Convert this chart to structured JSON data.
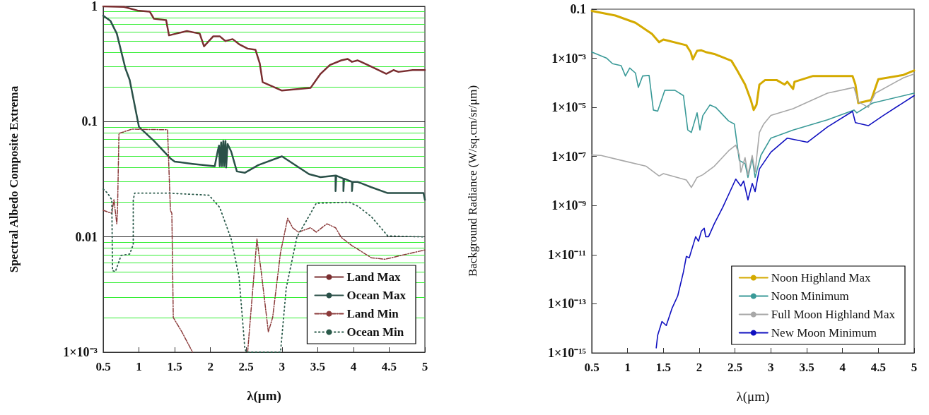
{
  "chart_data": [
    {
      "type": "line",
      "xlabel": "λ(μm)",
      "ylabel": "Spectral Albedo Composite Extrema",
      "log": "y",
      "grid": "y",
      "legend": "bottom right",
      "marker": "none",
      "xlim": [
        0.5,
        5
      ],
      "xticks": [
        0.5,
        1,
        1.5,
        2,
        2.5,
        3,
        3.5,
        4,
        4.5,
        5
      ],
      "ylim": [
        0.001,
        1
      ],
      "yticks": [
        {
          "value": 0.001,
          "label": "1×10⁻³"
        },
        {
          "value": 0.002,
          "label": null
        },
        {
          "value": 0.003,
          "label": null
        },
        {
          "value": 0.004,
          "label": null
        },
        {
          "value": 0.005,
          "label": null
        },
        {
          "value": 0.006,
          "label": null
        },
        {
          "value": 0.007,
          "label": null
        },
        {
          "value": 0.008,
          "label": null
        },
        {
          "value": 0.009,
          "label": null
        },
        0.01,
        {
          "value": 0.02,
          "label": null
        },
        {
          "value": 0.03,
          "label": null
        },
        {
          "value": 0.04,
          "label": null
        },
        {
          "value": 0.05,
          "label": null
        },
        {
          "value": 0.06,
          "label": null
        },
        {
          "value": 0.07,
          "label": null
        },
        {
          "value": 0.08,
          "label": null
        },
        {
          "value": 0.09,
          "label": null
        },
        0.1,
        {
          "value": 0.2,
          "label": null
        },
        {
          "value": 0.3,
          "label": null
        },
        {
          "value": 0.4,
          "label": null
        },
        {
          "value": 0.5,
          "label": null
        },
        {
          "value": 0.6,
          "label": null
        },
        {
          "value": 0.7,
          "label": null
        },
        {
          "value": 0.8,
          "label": null
        },
        {
          "value": 0.9,
          "label": null
        },
        1
      ],
      "series": [
        {
          "name": "Land Max",
          "color": "#7a2e30",
          "line_style": "solid",
          "x": [
            0.5,
            0.79,
            0.98,
            1.15,
            1.21,
            1.38,
            1.42,
            1.52,
            1.67,
            1.85,
            1.91,
            2.04,
            2.13,
            2.21,
            2.31,
            2.4,
            2.52,
            2.63,
            2.69,
            2.73,
            3.0,
            3.4,
            3.54,
            3.67,
            3.83,
            3.92,
            3.98,
            4.06,
            4.25,
            4.46,
            4.56,
            4.63,
            4.83,
            5.0
          ],
          "values": [
            1.0,
            0.99,
            0.92,
            0.9,
            0.78,
            0.76,
            0.56,
            0.58,
            0.61,
            0.58,
            0.45,
            0.55,
            0.55,
            0.5,
            0.52,
            0.47,
            0.43,
            0.42,
            0.32,
            0.22,
            0.186,
            0.196,
            0.26,
            0.31,
            0.34,
            0.35,
            0.33,
            0.34,
            0.3,
            0.26,
            0.28,
            0.27,
            0.28,
            0.28
          ]
        },
        {
          "name": "Ocean Max",
          "color": "#2a5048",
          "line_style": "solid",
          "x": [
            0.5,
            0.6,
            0.69,
            0.81,
            0.87,
            1.0,
            1.21,
            1.44,
            1.5,
            1.75,
            2.06,
            2.1,
            2.12,
            2.13,
            2.15,
            2.16,
            2.18,
            2.19,
            2.21,
            2.22,
            2.24,
            2.29,
            2.37,
            2.48,
            2.67,
            3.0,
            3.21,
            3.38,
            3.54,
            3.75,
            3.75,
            3.76,
            3.86,
            3.86,
            3.87,
            3.98,
            3.98,
            3.99,
            4.06,
            4.25,
            4.48,
            4.98,
            5.0
          ],
          "values": [
            0.83,
            0.75,
            0.58,
            0.29,
            0.23,
            0.09,
            0.068,
            0.048,
            0.045,
            0.043,
            0.041,
            0.055,
            0.062,
            0.041,
            0.066,
            0.041,
            0.068,
            0.041,
            0.068,
            0.04,
            0.064,
            0.055,
            0.037,
            0.036,
            0.042,
            0.05,
            0.041,
            0.035,
            0.033,
            0.034,
            0.025,
            0.034,
            0.032,
            0.025,
            0.032,
            0.03,
            0.025,
            0.03,
            0.03,
            0.027,
            0.024,
            0.024,
            0.021
          ]
        },
        {
          "name": "Land Min",
          "color": "#8b3a3a",
          "line_style": "dashed",
          "x": [
            0.5,
            0.62,
            0.65,
            0.69,
            0.7,
            0.72,
            0.9,
            1.4,
            1.44,
            1.46,
            1.48,
            1.6,
            1.75,
            2.1,
            2.52,
            2.65,
            2.71,
            2.81,
            2.87,
            2.98,
            3.08,
            3.15,
            3.23,
            3.4,
            3.48,
            3.63,
            3.75,
            3.83,
            3.98,
            4.25,
            4.44,
            4.75,
            5.0
          ],
          "values": [
            0.017,
            0.016,
            0.021,
            0.013,
            0.017,
            0.079,
            0.086,
            0.085,
            0.017,
            0.016,
            0.002,
            0.0015,
            0.001,
            null,
            0.001,
            0.0096,
            0.005,
            0.0015,
            0.002,
            0.0073,
            0.0145,
            0.012,
            0.011,
            0.012,
            0.011,
            0.013,
            0.012,
            0.0099,
            0.0084,
            0.0066,
            0.0064,
            0.0071,
            0.0077
          ]
        },
        {
          "name": "Ocean Min",
          "color": "#2a5a4a",
          "line_style": "dotted",
          "x": [
            0.5,
            0.56,
            0.62,
            0.63,
            0.67,
            0.75,
            0.87,
            0.92,
            0.92,
            0.94,
            0.98,
            1.4,
            1.98,
            2.13,
            2.29,
            2.4,
            2.48,
            2.5,
            2.98,
            3.06,
            3.21,
            3.33,
            3.48,
            3.94,
            4.06,
            4.25,
            4.48,
            5.0
          ],
          "values": [
            0.026,
            0.024,
            0.021,
            0.0051,
            0.005,
            0.0069,
            0.0071,
            0.0086,
            0.021,
            0.024,
            0.024,
            0.024,
            0.023,
            0.018,
            0.0096,
            0.0045,
            0.0011,
            0.001,
            0.001,
            0.0036,
            0.01,
            0.0134,
            0.0196,
            0.02,
            0.0185,
            0.015,
            0.0102,
            0.01
          ]
        }
      ]
    },
    {
      "type": "line",
      "xlabel": "λ(μm)",
      "ylabel": "Background Radiance (W/sq.cm/sr/μm)",
      "log": "y",
      "legend": "bottom right",
      "marker": "none",
      "xlim": [
        0.5,
        5
      ],
      "xticks": [
        0.5,
        1,
        1.5,
        2,
        2.5,
        3,
        3.5,
        4,
        4.5,
        5
      ],
      "ylim": [
        1e-15,
        0.1
      ],
      "yticks": [
        {
          "value": 1e-15,
          "label": "1×10⁻¹⁵"
        },
        {
          "value": 1e-13,
          "label": "1×10⁻¹³"
        },
        {
          "value": 1e-11,
          "label": "1×10⁻¹¹"
        },
        {
          "value": 1e-09,
          "label": "1×10⁻⁹"
        },
        {
          "value": 1e-07,
          "label": "1×10⁻⁷"
        },
        {
          "value": 1e-05,
          "label": "1×10⁻⁵"
        },
        {
          "value": 0.001,
          "label": "1×10⁻³"
        },
        0.1
      ],
      "series": [
        {
          "name": "Noon Highland Max",
          "color": "#d4aa00",
          "line_style": "solid",
          "x": [
            0.5,
            0.83,
            1.11,
            1.34,
            1.44,
            1.5,
            1.82,
            1.88,
            1.91,
            1.97,
            2.03,
            2.09,
            2.21,
            2.45,
            2.53,
            2.64,
            2.72,
            2.76,
            2.8,
            2.84,
            2.92,
            3.08,
            3.19,
            3.23,
            3.31,
            3.33,
            3.59,
            4.14,
            4.18,
            4.22,
            4.4,
            4.5,
            4.85,
            5.0
          ],
          "values": [
            0.085,
            0.055,
            0.028,
            0.0098,
            0.0045,
            0.0058,
            0.0034,
            0.0018,
            0.00091,
            0.002,
            0.0021,
            0.0018,
            0.0015,
            0.00079,
            0.00032,
            8.5e-05,
            2e-05,
            7.8e-06,
            1.3e-05,
            8.5e-05,
            0.00013,
            0.00013,
            8.5e-05,
            0.00011,
            5.6e-05,
            0.00011,
            0.00019,
            0.00019,
            8.5e-05,
            1.5e-05,
            2e-05,
            0.00014,
            0.00021,
            0.00032
          ]
        },
        {
          "name": "Noon Minimum",
          "color": "#3a9a98",
          "line_style": "solid",
          "x": [
            0.5,
            0.71,
            0.79,
            0.91,
            0.97,
            1.03,
            1.11,
            1.15,
            1.21,
            1.3,
            1.36,
            1.42,
            1.52,
            1.66,
            1.78,
            1.84,
            1.89,
            1.97,
            2.01,
            2.05,
            2.15,
            2.23,
            2.41,
            2.49,
            2.56,
            2.64,
            2.68,
            2.74,
            2.78,
            2.86,
            3.0,
            3.31,
            3.79,
            4.16,
            4.2,
            4.42,
            5.0
          ],
          "values": [
            0.0018,
            0.001,
            0.0006,
            0.0005,
            0.00019,
            0.0004,
            0.00025,
            6.5e-05,
            0.00019,
            0.0002,
            7.8e-06,
            7e-06,
            5e-05,
            5e-05,
            3e-05,
            1.2e-06,
            9.5e-07,
            6e-06,
            1.2e-06,
            4.6e-06,
            1.26e-05,
            1e-05,
            2.8e-06,
            2.1e-06,
            6.8e-08,
            5.2e-08,
            1.4e-08,
            8.7e-08,
            1.4e-08,
            1.1e-07,
            5.6e-07,
            1.2e-06,
            3.1e-06,
            7.8e-06,
            6e-06,
            1.5e-05,
            3.8e-05
          ]
        },
        {
          "name": "Full Moon Highland Max",
          "color": "#a8a8a8",
          "line_style": "solid",
          "x": [
            0.5,
            0.63,
            0.91,
            1.26,
            1.44,
            1.5,
            1.82,
            1.89,
            1.97,
            2.05,
            2.21,
            2.41,
            2.51,
            2.56,
            2.58,
            2.64,
            2.68,
            2.74,
            2.78,
            2.84,
            2.9,
            3.0,
            3.31,
            3.79,
            4.16,
            4.22,
            4.36,
            4.46,
            4.85,
            5.0
          ],
          "values": [
            1.15e-07,
            1.1e-07,
            7e-08,
            4e-08,
            1.6e-08,
            2e-08,
            1.1e-08,
            5.5e-09,
            1.4e-08,
            1.8e-08,
            4e-08,
            1.7e-07,
            2.9e-07,
            1.15e-07,
            2.3e-08,
            9e-08,
            1.8e-08,
            1.1e-07,
            2.3e-08,
            9.5e-07,
            2.1e-06,
            4.7e-06,
            8.9e-06,
            3.8e-05,
            6.5e-05,
            1.7e-05,
            1e-05,
            3.8e-05,
            0.00016,
            0.00023
          ]
        },
        {
          "name": "New Moon Minimum",
          "color": "#1010c0",
          "line_style": "solid",
          "x": [
            1.4,
            1.42,
            1.48,
            1.54,
            1.62,
            1.7,
            1.78,
            1.82,
            1.86,
            1.95,
            1.99,
            2.03,
            2.07,
            2.09,
            2.13,
            2.21,
            2.33,
            2.41,
            2.51,
            2.58,
            2.62,
            2.68,
            2.74,
            2.78,
            2.84,
            3.0,
            3.23,
            3.51,
            3.79,
            4.14,
            4.18,
            4.36,
            4.57,
            5.0
          ],
          "values": [
            1.6e-15,
            5.2e-15,
            1.9e-14,
            1.3e-14,
            6.5e-14,
            2.1e-13,
            2e-12,
            8.5e-12,
            7.4e-12,
            5.4e-11,
            3.5e-11,
            9.1e-11,
            1.2e-10,
            5.4e-11,
            5.4e-11,
            1.8e-10,
            8.7e-10,
            2.8e-09,
            1.2e-08,
            6.3e-09,
            1e-08,
            1.7e-09,
            8e-09,
            3.7e-09,
            3.1e-08,
            1.5e-07,
            5.6e-07,
            3.8e-07,
            1.6e-06,
            6.9e-06,
            2.4e-06,
            1.8e-06,
            4.7e-06,
            3e-05
          ]
        }
      ]
    }
  ]
}
